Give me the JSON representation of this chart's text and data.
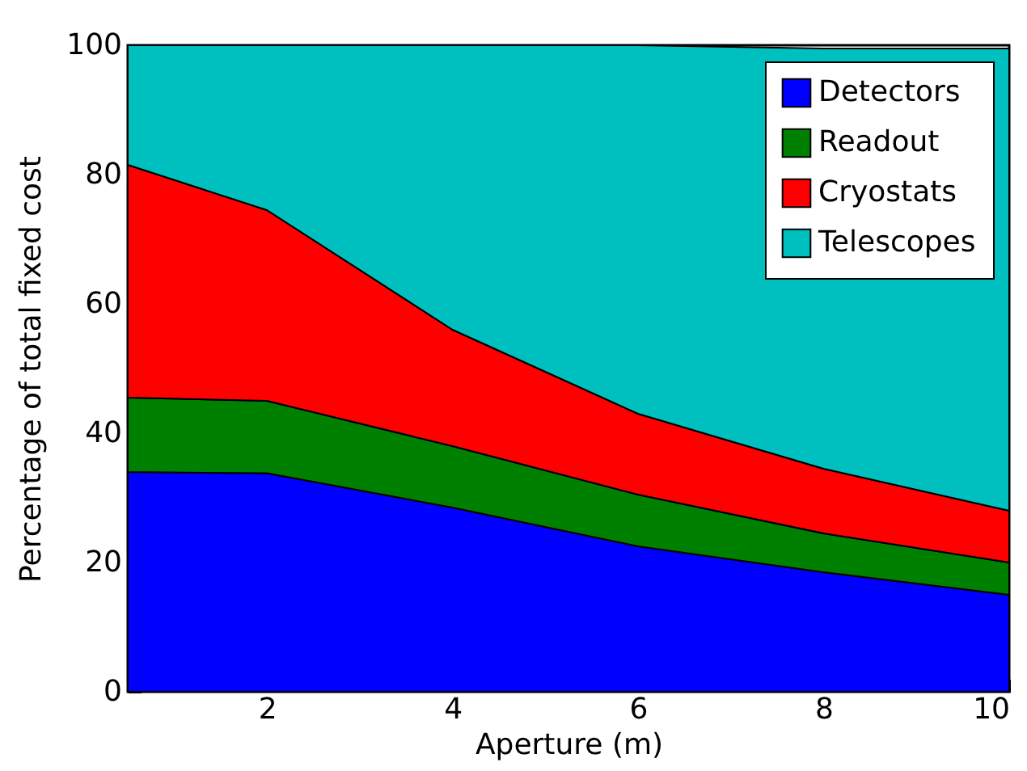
{
  "chart_data": {
    "type": "area",
    "xlabel": "Aperture (m)",
    "ylabel": "Percentage of total fixed cost",
    "x": [
      0.5,
      2,
      4,
      6,
      8,
      10
    ],
    "xlim": [
      0.5,
      10
    ],
    "xticks": [
      2,
      4,
      6,
      8,
      10
    ],
    "ylim": [
      0,
      100
    ],
    "yticks": [
      0,
      20,
      40,
      60,
      80,
      100
    ],
    "stacked": true,
    "legend": "top right",
    "grid": false,
    "series": [
      {
        "name": "Detectors",
        "color": "#0000ff",
        "values": [
          34,
          33.8,
          28.5,
          22.5,
          18.5,
          15
        ]
      },
      {
        "name": "Readout",
        "color": "#008000",
        "values": [
          11.5,
          11.2,
          9.5,
          8,
          6,
          5
        ]
      },
      {
        "name": "Cryostats",
        "color": "#ff0000",
        "values": [
          36,
          29.5,
          18,
          12.5,
          10,
          8
        ]
      },
      {
        "name": "Telescopes",
        "color": "#00bfbf",
        "values": [
          18.5,
          25.5,
          44,
          57,
          65,
          71.5
        ]
      }
    ]
  }
}
